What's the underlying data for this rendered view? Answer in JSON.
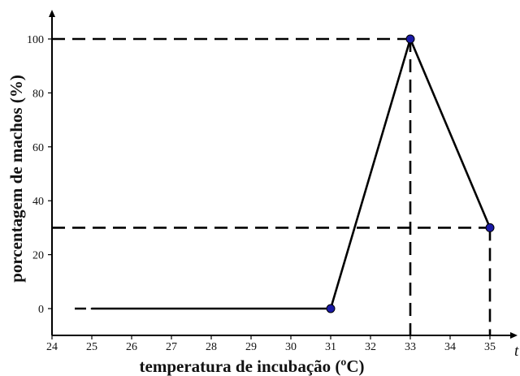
{
  "chart_data": {
    "type": "line",
    "title": "",
    "xlabel": "temperatura de incubação (ºC)",
    "ylabel": "porcentagem de machos (%)",
    "x_axis_end_label": "t",
    "xlim": [
      24,
      35.6
    ],
    "ylim": [
      0,
      108
    ],
    "x_ticks": [
      "24",
      "25",
      "26",
      "27",
      "28",
      "29",
      "30",
      "31",
      "32",
      "33",
      "34",
      "35"
    ],
    "y_ticks": [
      "0",
      "20",
      "40",
      "60",
      "80",
      "100"
    ],
    "grid": false,
    "legend": "none",
    "series": [
      {
        "x": [
          25,
          31,
          33,
          35
        ],
        "y": [
          0,
          0,
          100,
          30
        ]
      }
    ],
    "markers": [
      {
        "x": 31,
        "y": 0
      },
      {
        "x": 33,
        "y": 100
      },
      {
        "x": 35,
        "y": 30
      }
    ],
    "reference_lines": [
      {
        "x": 33,
        "y": 100
      },
      {
        "x": 35,
        "y": 30
      }
    ],
    "colors": {
      "line": "#000000",
      "marker": "#1a1aa6",
      "axis": "#000000"
    }
  }
}
